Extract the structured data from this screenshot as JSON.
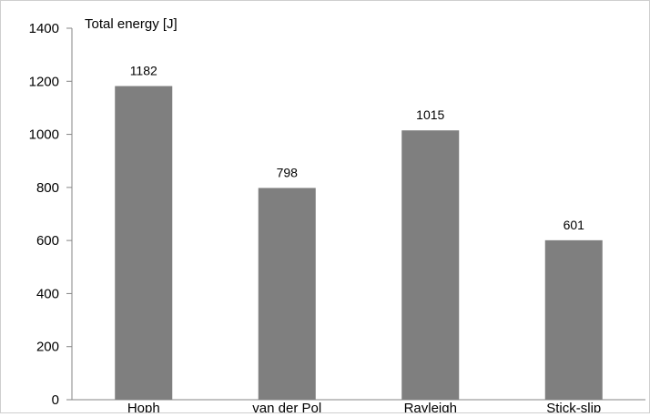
{
  "chart_data": {
    "type": "bar",
    "title": "",
    "ylabel": "Total energy [J]",
    "xlabel": "",
    "categories": [
      "Hoph",
      "van der Pol",
      "Rayleigh",
      "Stick-slip"
    ],
    "values": [
      1182,
      798,
      1015,
      601
    ],
    "data_labels": [
      "1182",
      "798",
      "1015",
      "601"
    ],
    "ylim": [
      0,
      1400
    ],
    "yticks": [
      0,
      200,
      400,
      600,
      800,
      1000,
      1200,
      1400
    ],
    "ytick_labels": [
      "0",
      "200",
      "400",
      "600",
      "800",
      "1000",
      "1200",
      "1400"
    ],
    "grid": false,
    "legend": "none",
    "bar_color": "#7f7f7f",
    "axis_color": "#868686"
  }
}
